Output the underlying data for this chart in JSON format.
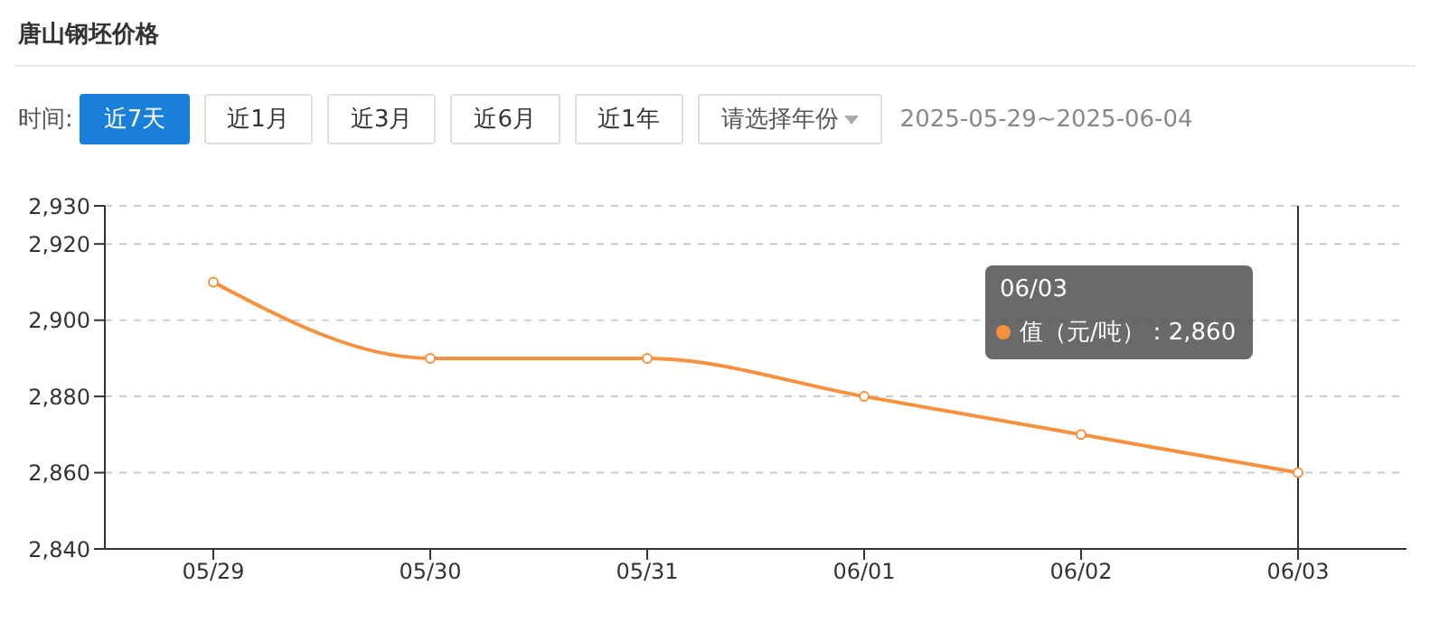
{
  "chart_data": {
    "type": "line",
    "title": "唐山钢坯价格",
    "categories": [
      "05/29",
      "05/30",
      "05/31",
      "06/01",
      "06/02",
      "06/03"
    ],
    "series": [
      {
        "color": "#f7913d",
        "values": [
          2910,
          2890,
          2890,
          2880,
          2870,
          2860
        ]
      }
    ],
    "ylim": [
      2840,
      2930
    ],
    "yticks": [
      {
        "value": 2840,
        "label": "2,840"
      },
      {
        "value": 2860,
        "label": "2,860"
      },
      {
        "value": 2880,
        "label": "2,880"
      },
      {
        "value": 2900,
        "label": "2,900"
      },
      {
        "value": 2920,
        "label": "2,920"
      },
      {
        "value": 2930,
        "label": "2,930"
      }
    ],
    "grid": "y",
    "marker": "circle",
    "line_style": "solid",
    "legend": false,
    "ref_lines": [
      {
        "axis": "x",
        "value": "06/03",
        "color": "#333333"
      }
    ],
    "annotations": [
      "时间:",
      "近7天",
      "近1月",
      "近3月",
      "近6月",
      "近1年",
      "请选择年份",
      "2025-05-29~2025-06-04",
      "06/03",
      "值（元/吨）：2,860"
    ]
  }
}
